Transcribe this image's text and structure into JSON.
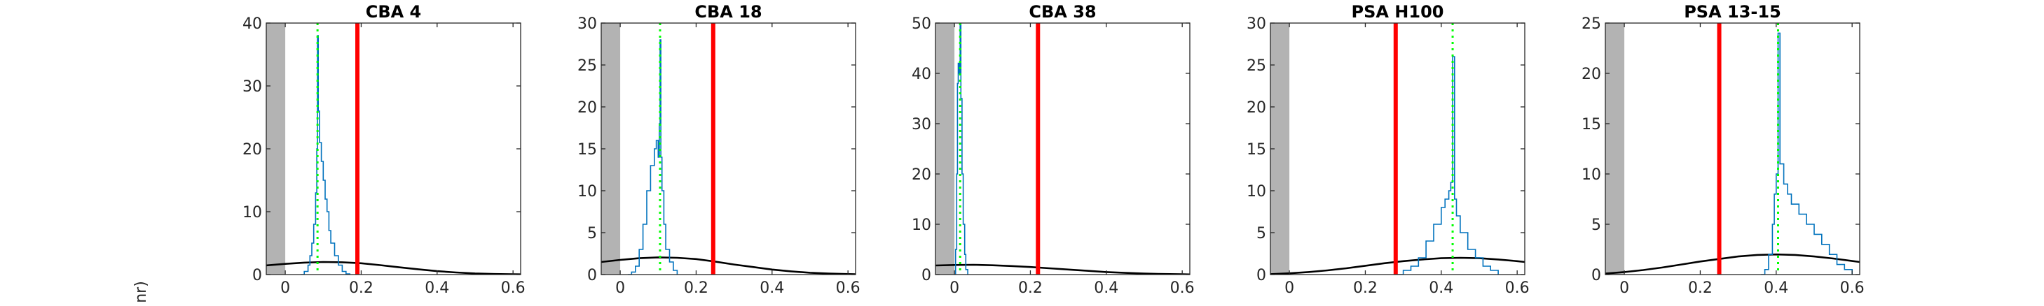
{
  "page": {
    "clipped_ylabel_fragment": "nr)"
  },
  "chart_data": [
    {
      "type": "line",
      "title": "CBA 4",
      "xlim": [
        -0.05,
        0.62
      ],
      "ylim": [
        0,
        40
      ],
      "xticks": [
        0,
        0.2,
        0.4,
        0.6
      ],
      "xtick_labels": [
        "0",
        "0.2",
        "0.4",
        "0.6"
      ],
      "yticks": [
        0,
        10,
        20,
        30,
        40
      ],
      "ytick_labels": [
        "0",
        "10",
        "20",
        "30",
        "40"
      ],
      "shaded_region": [
        -0.05,
        0.0
      ],
      "green_line": 0.085,
      "red_line": 0.19,
      "histogram": [
        [
          0.04,
          0
        ],
        [
          0.05,
          0.5
        ],
        [
          0.06,
          1.5
        ],
        [
          0.065,
          3
        ],
        [
          0.07,
          5
        ],
        [
          0.075,
          8
        ],
        [
          0.08,
          13
        ],
        [
          0.083,
          20
        ],
        [
          0.085,
          38
        ],
        [
          0.087,
          26
        ],
        [
          0.09,
          21
        ],
        [
          0.095,
          18
        ],
        [
          0.1,
          15
        ],
        [
          0.105,
          12
        ],
        [
          0.11,
          10
        ],
        [
          0.115,
          7
        ],
        [
          0.12,
          5
        ],
        [
          0.13,
          3
        ],
        [
          0.14,
          1.5
        ],
        [
          0.15,
          0.5
        ],
        [
          0.16,
          0.1
        ],
        [
          0.17,
          0
        ]
      ],
      "prior_curve": [
        [
          -0.05,
          1.45
        ],
        [
          0,
          1.7
        ],
        [
          0.05,
          1.9
        ],
        [
          0.1,
          2.0
        ],
        [
          0.15,
          1.95
        ],
        [
          0.2,
          1.8
        ],
        [
          0.25,
          1.5
        ],
        [
          0.3,
          1.15
        ],
        [
          0.35,
          0.85
        ],
        [
          0.4,
          0.55
        ],
        [
          0.45,
          0.33
        ],
        [
          0.5,
          0.18
        ],
        [
          0.55,
          0.09
        ],
        [
          0.6,
          0.04
        ],
        [
          0.62,
          0.03
        ]
      ],
      "colors": {
        "shade": "#b3b3b3",
        "histogram": "#0072bd",
        "green": "#00ff00",
        "red": "#ff0000",
        "prior": "#000000"
      }
    },
    {
      "type": "line",
      "title": "CBA 18",
      "xlim": [
        -0.05,
        0.62
      ],
      "ylim": [
        0,
        30
      ],
      "xticks": [
        0,
        0.2,
        0.4,
        0.6
      ],
      "xtick_labels": [
        "0",
        "0.2",
        "0.4",
        "0.6"
      ],
      "yticks": [
        0,
        5,
        10,
        15,
        20,
        25,
        30
      ],
      "ytick_labels": [
        "0",
        "5",
        "10",
        "15",
        "20",
        "25",
        "30"
      ],
      "shaded_region": [
        -0.05,
        0.0
      ],
      "green_line": 0.105,
      "red_line": 0.245,
      "histogram": [
        [
          0.02,
          0
        ],
        [
          0.03,
          0.3
        ],
        [
          0.04,
          1
        ],
        [
          0.05,
          3
        ],
        [
          0.06,
          6
        ],
        [
          0.07,
          10
        ],
        [
          0.08,
          13
        ],
        [
          0.09,
          15
        ],
        [
          0.095,
          16
        ],
        [
          0.1,
          14
        ],
        [
          0.103,
          18
        ],
        [
          0.105,
          28
        ],
        [
          0.107,
          14
        ],
        [
          0.11,
          10
        ],
        [
          0.115,
          6
        ],
        [
          0.12,
          3
        ],
        [
          0.13,
          1.5
        ],
        [
          0.14,
          0.5
        ],
        [
          0.15,
          0
        ]
      ],
      "prior_curve": [
        [
          -0.05,
          1.5
        ],
        [
          0,
          1.75
        ],
        [
          0.05,
          1.95
        ],
        [
          0.1,
          2.05
        ],
        [
          0.15,
          2.0
        ],
        [
          0.2,
          1.85
        ],
        [
          0.25,
          1.55
        ],
        [
          0.3,
          1.2
        ],
        [
          0.35,
          0.9
        ],
        [
          0.4,
          0.6
        ],
        [
          0.45,
          0.38
        ],
        [
          0.5,
          0.22
        ],
        [
          0.55,
          0.12
        ],
        [
          0.6,
          0.06
        ],
        [
          0.62,
          0.04
        ]
      ],
      "colors": {
        "shade": "#b3b3b3",
        "histogram": "#0072bd",
        "green": "#00ff00",
        "red": "#ff0000",
        "prior": "#000000"
      }
    },
    {
      "type": "line",
      "title": "CBA 38",
      "xlim": [
        -0.05,
        0.62
      ],
      "ylim": [
        0,
        50
      ],
      "xticks": [
        0,
        0.2,
        0.4,
        0.6
      ],
      "xtick_labels": [
        "0",
        "0.2",
        "0.4",
        "0.6"
      ],
      "yticks": [
        0,
        10,
        20,
        30,
        40,
        50
      ],
      "ytick_labels": [
        "0",
        "10",
        "20",
        "30",
        "40",
        "50"
      ],
      "shaded_region": [
        -0.05,
        0.0
      ],
      "green_line": 0.015,
      "red_line": 0.22,
      "histogram": [
        [
          0.0,
          0
        ],
        [
          0.003,
          5
        ],
        [
          0.006,
          20
        ],
        [
          0.008,
          38
        ],
        [
          0.01,
          42
        ],
        [
          0.012,
          40
        ],
        [
          0.015,
          50
        ],
        [
          0.017,
          35
        ],
        [
          0.02,
          20
        ],
        [
          0.023,
          10
        ],
        [
          0.027,
          4
        ],
        [
          0.03,
          1
        ],
        [
          0.035,
          0
        ]
      ],
      "prior_curve": [
        [
          -0.05,
          1.8
        ],
        [
          0,
          1.9
        ],
        [
          0.05,
          1.95
        ],
        [
          0.1,
          1.85
        ],
        [
          0.15,
          1.7
        ],
        [
          0.2,
          1.5
        ],
        [
          0.25,
          1.25
        ],
        [
          0.3,
          1.0
        ],
        [
          0.35,
          0.75
        ],
        [
          0.4,
          0.5
        ],
        [
          0.45,
          0.33
        ],
        [
          0.5,
          0.2
        ],
        [
          0.55,
          0.11
        ],
        [
          0.6,
          0.05
        ],
        [
          0.62,
          0.03
        ]
      ],
      "colors": {
        "shade": "#b3b3b3",
        "histogram": "#0072bd",
        "green": "#00ff00",
        "red": "#ff0000",
        "prior": "#000000"
      }
    },
    {
      "type": "line",
      "title": "PSA H100",
      "xlim": [
        -0.05,
        0.62
      ],
      "ylim": [
        0,
        30
      ],
      "xticks": [
        0,
        0.2,
        0.4,
        0.6
      ],
      "xtick_labels": [
        "0",
        "0.2",
        "0.4",
        "0.6"
      ],
      "yticks": [
        0,
        5,
        10,
        15,
        20,
        25,
        30
      ],
      "ytick_labels": [
        "0",
        "5",
        "10",
        "15",
        "20",
        "25",
        "30"
      ],
      "shaded_region": [
        -0.05,
        0.0
      ],
      "green_line": 0.43,
      "red_line": 0.28,
      "histogram": [
        [
          0.28,
          0
        ],
        [
          0.3,
          0.5
        ],
        [
          0.32,
          1
        ],
        [
          0.34,
          2
        ],
        [
          0.36,
          4
        ],
        [
          0.38,
          6
        ],
        [
          0.4,
          8
        ],
        [
          0.41,
          9
        ],
        [
          0.42,
          10
        ],
        [
          0.425,
          11
        ],
        [
          0.43,
          26
        ],
        [
          0.435,
          9
        ],
        [
          0.44,
          7
        ],
        [
          0.45,
          5
        ],
        [
          0.47,
          3
        ],
        [
          0.49,
          2
        ],
        [
          0.51,
          1
        ],
        [
          0.53,
          0.5
        ],
        [
          0.55,
          0
        ]
      ],
      "prior_curve": [
        [
          -0.05,
          0.05
        ],
        [
          0,
          0.15
        ],
        [
          0.05,
          0.3
        ],
        [
          0.1,
          0.5
        ],
        [
          0.15,
          0.75
        ],
        [
          0.2,
          1.05
        ],
        [
          0.25,
          1.35
        ],
        [
          0.3,
          1.6
        ],
        [
          0.35,
          1.8
        ],
        [
          0.4,
          1.95
        ],
        [
          0.45,
          2.0
        ],
        [
          0.5,
          1.95
        ],
        [
          0.55,
          1.8
        ],
        [
          0.6,
          1.6
        ],
        [
          0.62,
          1.5
        ]
      ],
      "colors": {
        "shade": "#b3b3b3",
        "histogram": "#0072bd",
        "green": "#00ff00",
        "red": "#ff0000",
        "prior": "#000000"
      }
    },
    {
      "type": "line",
      "title": "PSA 13-15",
      "xlim": [
        -0.05,
        0.62
      ],
      "ylim": [
        0,
        25
      ],
      "xticks": [
        0,
        0.2,
        0.4,
        0.6
      ],
      "xtick_labels": [
        "0",
        "0.2",
        "0.4",
        "0.6"
      ],
      "yticks": [
        0,
        5,
        10,
        15,
        20,
        25
      ],
      "ytick_labels": [
        "0",
        "5",
        "10",
        "15",
        "20",
        "25"
      ],
      "shaded_region": [
        -0.05,
        0.0
      ],
      "green_line": 0.405,
      "red_line": 0.25,
      "histogram": [
        [
          0.36,
          0
        ],
        [
          0.37,
          0.5
        ],
        [
          0.38,
          2
        ],
        [
          0.39,
          5
        ],
        [
          0.395,
          8
        ],
        [
          0.4,
          10
        ],
        [
          0.405,
          24
        ],
        [
          0.41,
          11
        ],
        [
          0.42,
          9
        ],
        [
          0.43,
          8
        ],
        [
          0.44,
          7
        ],
        [
          0.46,
          6
        ],
        [
          0.48,
          5
        ],
        [
          0.5,
          4
        ],
        [
          0.52,
          3
        ],
        [
          0.54,
          2
        ],
        [
          0.56,
          1
        ],
        [
          0.58,
          0.5
        ],
        [
          0.6,
          0
        ]
      ],
      "prior_curve": [
        [
          -0.05,
          0.1
        ],
        [
          0,
          0.25
        ],
        [
          0.05,
          0.45
        ],
        [
          0.1,
          0.7
        ],
        [
          0.15,
          1.0
        ],
        [
          0.2,
          1.3
        ],
        [
          0.25,
          1.55
        ],
        [
          0.3,
          1.8
        ],
        [
          0.35,
          1.95
        ],
        [
          0.4,
          2.0
        ],
        [
          0.45,
          1.95
        ],
        [
          0.5,
          1.8
        ],
        [
          0.55,
          1.6
        ],
        [
          0.6,
          1.35
        ],
        [
          0.62,
          1.25
        ]
      ],
      "colors": {
        "shade": "#b3b3b3",
        "histogram": "#0072bd",
        "green": "#00ff00",
        "red": "#ff0000",
        "prior": "#000000"
      }
    }
  ]
}
